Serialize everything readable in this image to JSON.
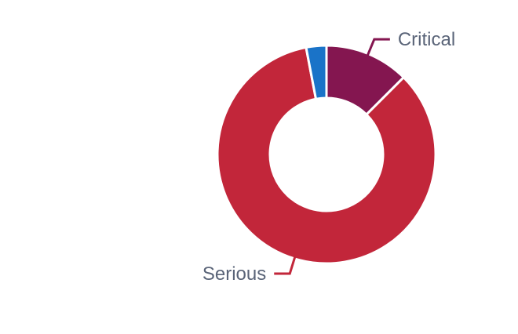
{
  "chart_data": {
    "type": "pie",
    "donut": true,
    "slices": [
      {
        "label": "Critical",
        "value": 12.5,
        "color": "#841650"
      },
      {
        "label": "Serious",
        "value": 84.5,
        "color": "#c2263a"
      },
      {
        "label": "",
        "value": 3.0,
        "color": "#1a73c8"
      }
    ],
    "labels_shown": [
      "Critical",
      "Serious"
    ],
    "legend": "none"
  }
}
